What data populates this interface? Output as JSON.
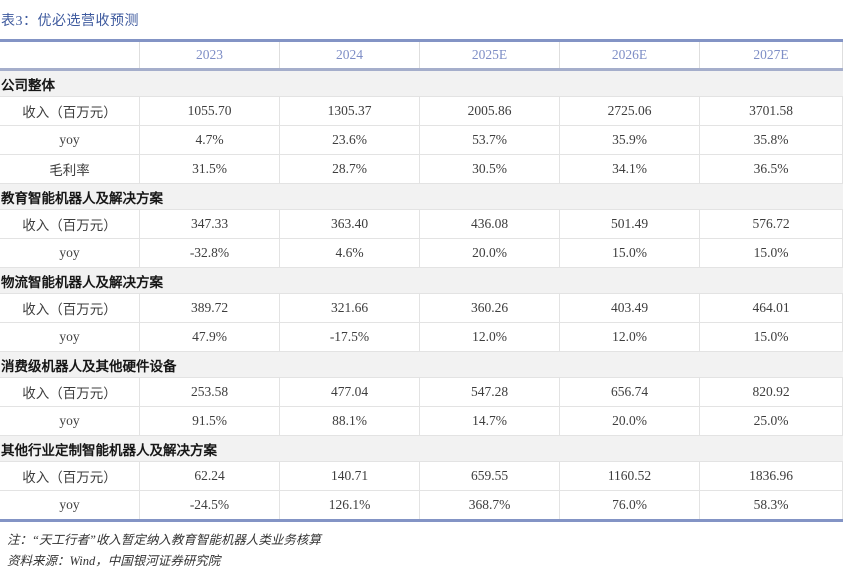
{
  "title": "表3：优必选营收预测",
  "table": {
    "year_headers": [
      "2023",
      "2024",
      "2025E",
      "2026E",
      "2027E"
    ],
    "sections": [
      {
        "label": "公司整体",
        "rows": [
          {
            "label": "收入（百万元）",
            "values": [
              "1055.70",
              "1305.37",
              "2005.86",
              "2725.06",
              "3701.58"
            ]
          },
          {
            "label": "yoy",
            "values": [
              "4.7%",
              "23.6%",
              "53.7%",
              "35.9%",
              "35.8%"
            ]
          },
          {
            "label": "毛利率",
            "values": [
              "31.5%",
              "28.7%",
              "30.5%",
              "34.1%",
              "36.5%"
            ]
          }
        ]
      },
      {
        "label": "教育智能机器人及解决方案",
        "rows": [
          {
            "label": "收入（百万元）",
            "values": [
              "347.33",
              "363.40",
              "436.08",
              "501.49",
              "576.72"
            ]
          },
          {
            "label": "yoy",
            "values": [
              "-32.8%",
              "4.6%",
              "20.0%",
              "15.0%",
              "15.0%"
            ]
          }
        ]
      },
      {
        "label": "物流智能机器人及解决方案",
        "rows": [
          {
            "label": "收入（百万元）",
            "values": [
              "389.72",
              "321.66",
              "360.26",
              "403.49",
              "464.01"
            ]
          },
          {
            "label": "yoy",
            "values": [
              "47.9%",
              "-17.5%",
              "12.0%",
              "12.0%",
              "15.0%"
            ]
          }
        ]
      },
      {
        "label": "消费级机器人及其他硬件设备",
        "rows": [
          {
            "label": "收入（百万元）",
            "values": [
              "253.58",
              "477.04",
              "547.28",
              "656.74",
              "820.92"
            ]
          },
          {
            "label": "yoy",
            "values": [
              "91.5%",
              "88.1%",
              "14.7%",
              "20.0%",
              "25.0%"
            ]
          }
        ]
      },
      {
        "label": "其他行业定制智能机器人及解决方案",
        "rows": [
          {
            "label": "收入（百万元）",
            "values": [
              "62.24",
              "140.71",
              "659.55",
              "1160.52",
              "1836.96"
            ]
          },
          {
            "label": "yoy",
            "values": [
              "-24.5%",
              "126.1%",
              "368.7%",
              "76.0%",
              "58.3%"
            ]
          }
        ]
      }
    ]
  },
  "notes": [
    "注：“天工行者”收入暂定纳入教育智能机器人类业务核算",
    "资料来源：Wind，中国银河证券研究院"
  ],
  "colors": {
    "title_blue": "#3e5a9e",
    "table_border_blue": "#8394c5",
    "header_separator": "#a5aecb",
    "year_header_text": "#7e8ec6",
    "section_background": "#f2f2f2",
    "grid_line": "#e3e3e3",
    "cell_text": "#3d3d3d"
  }
}
